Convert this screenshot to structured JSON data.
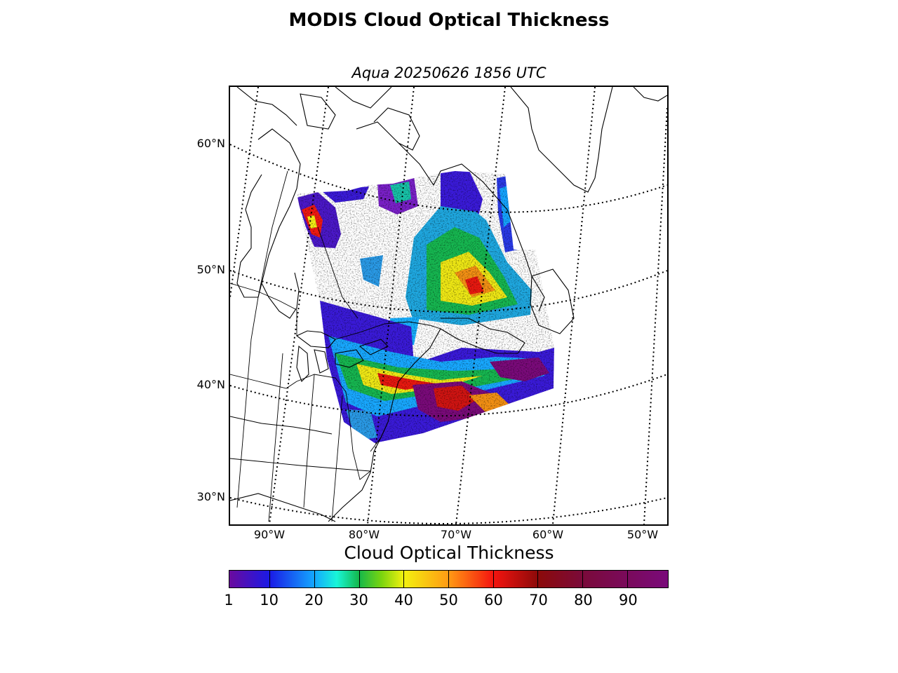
{
  "figure": {
    "title": "MODIS Cloud Optical Thickness",
    "subtitle": "Aqua 20250626 1856 UTC"
  },
  "map": {
    "projection": "polar-stereographic",
    "parallels": [
      {
        "label": "60°N",
        "value": 60
      },
      {
        "label": "50°N",
        "value": 50
      },
      {
        "label": "40°N",
        "value": 40
      },
      {
        "label": "30°N",
        "value": 30
      }
    ],
    "meridians": [
      {
        "label": "90°W",
        "value": -90
      },
      {
        "label": "80°W",
        "value": -80
      },
      {
        "label": "70°W",
        "value": -70
      },
      {
        "label": "60°W",
        "value": -60
      },
      {
        "label": "50°W",
        "value": -50
      }
    ],
    "graticule_style": "dotted",
    "features": [
      "coastlines",
      "country-borders",
      "us-state-borders",
      "modis-swath"
    ]
  },
  "colorbar": {
    "label": "Cloud Optical Thickness",
    "min": 1,
    "max": 99,
    "ticks": [
      1,
      10,
      20,
      30,
      40,
      50,
      60,
      70,
      80,
      90
    ],
    "tick_labels": [
      "1",
      "10",
      "20",
      "30",
      "40",
      "50",
      "60",
      "70",
      "80",
      "90"
    ],
    "colormap": [
      {
        "value": 1,
        "color": "#6a0a9e"
      },
      {
        "value": 10,
        "color": "#1a1ae6"
      },
      {
        "value": 20,
        "color": "#13a8ff"
      },
      {
        "value": 25,
        "color": "#19f5d8"
      },
      {
        "value": 30,
        "color": "#14b84a"
      },
      {
        "value": 35,
        "color": "#7ad40f"
      },
      {
        "value": 40,
        "color": "#f3f10f"
      },
      {
        "value": 50,
        "color": "#ff9a14"
      },
      {
        "value": 60,
        "color": "#f5140f"
      },
      {
        "value": 70,
        "color": "#8c0a0a"
      },
      {
        "value": 80,
        "color": "#7a0a3a"
      },
      {
        "value": 99,
        "color": "#7a0a7a"
      }
    ]
  }
}
